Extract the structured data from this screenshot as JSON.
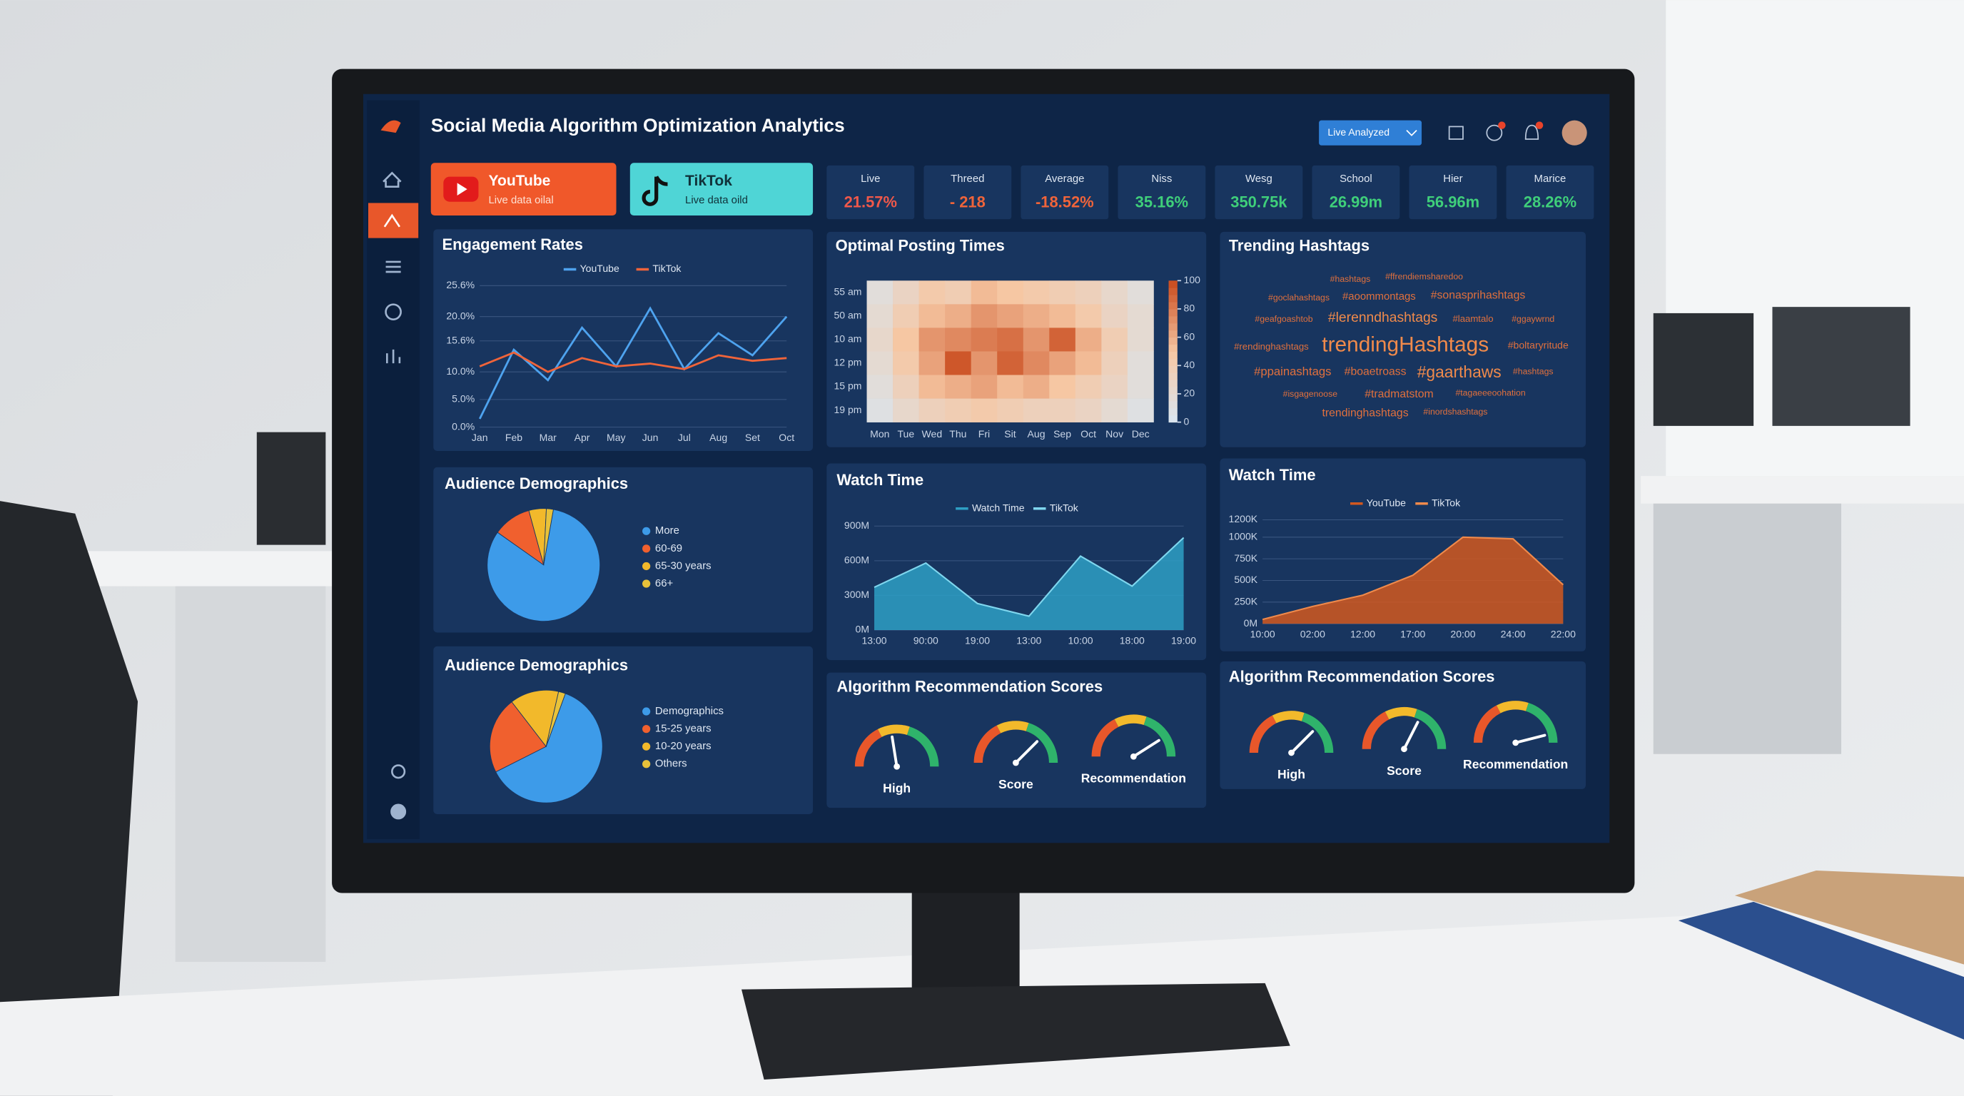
{
  "header": {
    "title": "Social Media Algorithm Optimization Analytics",
    "button": "Live Analyzed"
  },
  "platforms": [
    {
      "name": "YouTube",
      "status": "Live data oilal"
    },
    {
      "name": "TikTok",
      "status": "Live data oild"
    }
  ],
  "kpis": [
    {
      "label": "Live",
      "value": "21.57%",
      "color": "#f0584a"
    },
    {
      "label": "Threed",
      "value": "- 218",
      "color": "#f0643a"
    },
    {
      "label": "Average",
      "value": "-18.52%",
      "color": "#f0643a"
    },
    {
      "label": "Niss",
      "value": "35.16%",
      "color": "#3fcf7a"
    },
    {
      "label": "Wesg",
      "value": "350.75k",
      "color": "#3fcf7a"
    },
    {
      "label": "School",
      "value": "26.99m",
      "color": "#3fcf7a"
    },
    {
      "label": "Hier",
      "value": "56.96m",
      "color": "#3fcf7a"
    },
    {
      "label": "Marice",
      "value": "28.26%",
      "color": "#3fcf7a"
    }
  ],
  "panels": {
    "engagement": {
      "type": "line",
      "title": "Engagement Rates",
      "categories": [
        "Jan",
        "Feb",
        "Mar",
        "Apr",
        "May",
        "Jun",
        "Jul",
        "Aug",
        "Set",
        "Oct"
      ],
      "series": [
        {
          "name": "YouTube",
          "color": "#4ea3ef",
          "values": [
            1.5,
            14,
            8.5,
            18,
            11,
            21.5,
            10.5,
            17,
            13,
            20
          ]
        },
        {
          "name": "TikTok",
          "color": "#f0643a",
          "values": [
            11,
            13.5,
            10,
            12.5,
            11,
            11.5,
            10.5,
            13,
            12,
            12.5
          ]
        }
      ],
      "ylim": [
        0,
        25.6
      ],
      "yticks": [
        {
          "value": 0,
          "label": "0.0%"
        },
        {
          "value": 5,
          "label": "5.0%"
        },
        {
          "value": 10,
          "label": "10.0%"
        },
        {
          "value": 15.6,
          "label": "15.6%"
        },
        {
          "value": 20,
          "label": "20.0%"
        },
        {
          "value": 25.6,
          "label": "25.6%"
        }
      ],
      "grid": true
    },
    "heatmap": {
      "type": "heatmap",
      "title": "Optimal Posting Times",
      "rows": [
        "55 am",
        "50 am",
        "10 am",
        "12 pm",
        "15 pm",
        "19 pm"
      ],
      "columns": [
        "Mon",
        "Tue",
        "Wed",
        "Thu",
        "Fri",
        "Sit",
        "Aug",
        "Sep",
        "Oct",
        "Nov",
        "Dec"
      ],
      "values": [
        [
          15,
          30,
          45,
          40,
          55,
          50,
          45,
          40,
          35,
          25,
          15
        ],
        [
          20,
          40,
          55,
          60,
          70,
          65,
          60,
          55,
          45,
          30,
          20
        ],
        [
          25,
          50,
          70,
          75,
          80,
          85,
          70,
          90,
          60,
          40,
          20
        ],
        [
          20,
          45,
          65,
          95,
          70,
          90,
          75,
          65,
          55,
          35,
          15
        ],
        [
          15,
          35,
          55,
          60,
          65,
          55,
          60,
          50,
          40,
          30,
          15
        ],
        [
          10,
          25,
          35,
          40,
          45,
          40,
          35,
          35,
          30,
          20,
          10
        ]
      ],
      "clim": [
        0,
        100
      ],
      "cticks": [
        0,
        20,
        40,
        60,
        80,
        100
      ]
    },
    "hashtags": {
      "title": "Trending Hashtags",
      "tags": [
        "#hashtags",
        "#ffrendiemsharedoo",
        "#goclahashtags",
        "#aoommontags",
        "#sonasprihashtags",
        "#geafgoashtob",
        "#lerenndhashtags",
        "#laamtalo",
        "#ggaywrnd",
        "#rendinghashtags",
        "trendingHashtags",
        "#boltaryritude",
        "#ppainashtags",
        "#boaetroass",
        "#gaarthaws",
        "#hashtags",
        "#isgagenoose",
        "#tradmatstom",
        "#tagaeeeoohation",
        "trendinghashtags",
        "#inordshashtags"
      ]
    },
    "demographics1": {
      "type": "pie",
      "title": "Audience Demographics",
      "categories": [
        "More",
        "60-69",
        "65-30 years",
        "66+"
      ],
      "values": [
        82,
        11,
        5,
        2
      ],
      "colors": [
        "#3d9be9",
        "#f0602e",
        "#f2b92b",
        "#e8c23a"
      ]
    },
    "demographics2": {
      "type": "pie",
      "title": "Audience Demographics",
      "categories": [
        "Demographics",
        "15-25 years",
        "10-20 years",
        "Others"
      ],
      "values": [
        62,
        22,
        14,
        2
      ],
      "colors": [
        "#3d9be9",
        "#f0602e",
        "#f2b92b",
        "#e8c23a"
      ]
    },
    "watch1": {
      "type": "area",
      "title": "Watch Time",
      "categories": [
        "13:00",
        "90:00",
        "19:00",
        "13:00",
        "10:00",
        "18:00",
        "19:00"
      ],
      "series": [
        {
          "name": "Watch Time",
          "color": "#2e9fc4",
          "values": [
            370,
            580,
            230,
            120,
            640,
            380,
            800
          ]
        },
        {
          "name": "TikTok",
          "color": "#7fd6ee",
          "values": [
            370,
            580,
            230,
            120,
            640,
            380,
            800
          ]
        }
      ],
      "ylim": [
        0,
        900
      ],
      "yticks": [
        {
          "value": 0,
          "label": "0M"
        },
        {
          "value": 300,
          "label": "300M"
        },
        {
          "value": 600,
          "label": "600M"
        },
        {
          "value": 900,
          "label": "900M"
        }
      ],
      "grid": true
    },
    "watch2": {
      "type": "area",
      "title": "Watch Time",
      "categories": [
        "10:00",
        "02:00",
        "12:00",
        "17:00",
        "20:00",
        "24:00",
        "22:00"
      ],
      "series": [
        {
          "name": "YouTube",
          "color": "#d2581f",
          "values": [
            50,
            200,
            330,
            560,
            1000,
            980,
            450
          ]
        },
        {
          "name": "TikTok",
          "color": "#f08a4b",
          "values": [
            50,
            200,
            330,
            560,
            1000,
            980,
            450
          ]
        }
      ],
      "ylim": [
        0,
        1200
      ],
      "yticks": [
        {
          "value": 0,
          "label": "0M"
        },
        {
          "value": 250,
          "label": "250K"
        },
        {
          "value": 500,
          "label": "500K"
        },
        {
          "value": 750,
          "label": "750K"
        },
        {
          "value": 1000,
          "label": "1000K"
        },
        {
          "value": 1200,
          "label": "1200K"
        }
      ],
      "grid": true
    },
    "scores1": {
      "type": "gauge",
      "title": "Algorithm Recommendation Scores",
      "labels": [
        "High",
        "Score",
        "Recommendation"
      ],
      "values": [
        45,
        75,
        82
      ],
      "lim": [
        0,
        100
      ]
    },
    "scores2": {
      "type": "gauge",
      "title": "Algorithm Recommendation Scores",
      "labels": [
        "High",
        "Score",
        "Recommendation"
      ],
      "values": [
        75,
        65,
        92
      ],
      "lim": [
        0,
        100
      ]
    }
  }
}
